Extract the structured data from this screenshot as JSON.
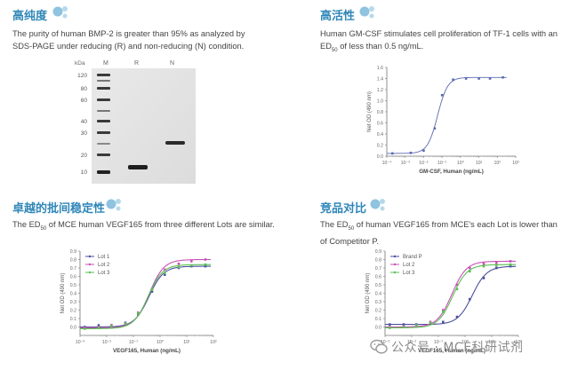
{
  "panels": {
    "purity": {
      "title": "高纯度",
      "desc_line1": "The purity of human BMP-2 is greater than  95% as analyzed by",
      "desc_line2": "SDS-PAGE under reducing (R) and non-reducing (N) condition.",
      "gel": {
        "kda_label": "kDa",
        "lane_labels": [
          "M",
          "R",
          "N"
        ],
        "marker_kda": [
          "120",
          "80",
          "60",
          "40",
          "30",
          "20",
          "10"
        ]
      }
    },
    "activity": {
      "title": "高活性",
      "desc_pre": "Human GM-CSF stimulates cell proliferation of TF-1 cells with an",
      "desc_ed": "ED",
      "desc_sub": "50",
      "desc_post": " of less than 0.5 ng/mL."
    },
    "consistency": {
      "title": "卓越的批间稳定性",
      "desc_pre": "The ED",
      "desc_sub": "50",
      "desc_post": " of MCE human VEGF165 from three different Lots are similar."
    },
    "comparison": {
      "title": "竞品对比",
      "desc_pre": "The ED",
      "desc_sub": "50",
      "desc_post": " of human VEGF165 from MCE's each Lot is lower than",
      "desc_line2": "of Competitor P."
    }
  },
  "chart_data": [
    {
      "type": "scatter",
      "id": "gmcsf",
      "xscale": "log",
      "xlabel": "GM-CSF, Human (ng/mL)",
      "ylabel": "Net OD (490 nm)",
      "xlim": [
        0.0001,
        1000
      ],
      "ylim": [
        0,
        1.6
      ],
      "x_ticks": [
        "10⁻⁴",
        "10⁻³",
        "10⁻²",
        "10⁻¹",
        "10⁰",
        "10¹",
        "10²",
        "10³"
      ],
      "y_ticks": [
        "0.0",
        "0.2",
        "0.4",
        "0.6",
        "0.8",
        "1.0",
        "1.2",
        "1.4",
        "1.6"
      ],
      "series": [
        {
          "color": "#5b6ab0",
          "x": [
            0.0002,
            0.002,
            0.01,
            0.04,
            0.1,
            0.4,
            2,
            10,
            40,
            200
          ],
          "y": [
            0.05,
            0.06,
            0.1,
            0.5,
            1.1,
            1.38,
            1.4,
            1.4,
            1.4,
            1.42
          ]
        }
      ]
    },
    {
      "type": "line",
      "id": "vegf_lots",
      "xscale": "log",
      "xlabel": "VEGF165, Human (ng/mL)",
      "ylabel": "Net OD (490 nm)",
      "xlim": [
        0.001,
        100
      ],
      "ylim": [
        -0.1,
        0.9
      ],
      "x_ticks": [
        "10⁻³",
        "10⁻²",
        "10⁻¹",
        "10⁰",
        "10¹",
        "10²"
      ],
      "y_ticks": [
        "0.0",
        "0.1",
        "0.2",
        "0.3",
        "0.4",
        "0.5",
        "0.6",
        "0.7",
        "0.8",
        "0.9"
      ],
      "legend": "top-left",
      "series": [
        {
          "name": "Lot 1",
          "color": "#4b4f9c",
          "x": [
            0.0015,
            0.005,
            0.015,
            0.05,
            0.15,
            0.5,
            1.5,
            5,
            15,
            50
          ],
          "y": [
            0.0,
            0.02,
            0.02,
            0.05,
            0.15,
            0.42,
            0.62,
            0.7,
            0.72,
            0.72
          ]
        },
        {
          "name": "Lot 2",
          "color": "#c94fb6",
          "x": [
            0.0015,
            0.005,
            0.015,
            0.05,
            0.15,
            0.5,
            1.5,
            5,
            15,
            50
          ],
          "y": [
            -0.01,
            0.0,
            0.02,
            0.04,
            0.17,
            0.45,
            0.68,
            0.75,
            0.78,
            0.8
          ]
        },
        {
          "name": "Lot 3",
          "color": "#5bbf55",
          "x": [
            0.0015,
            0.005,
            0.015,
            0.05,
            0.15,
            0.5,
            1.5,
            5,
            15,
            50
          ],
          "y": [
            -0.02,
            -0.01,
            0.01,
            0.04,
            0.16,
            0.44,
            0.64,
            0.71,
            0.73,
            0.74
          ]
        }
      ]
    },
    {
      "type": "line",
      "id": "vegf_compare",
      "xscale": "log",
      "xlabel": "VEGF165, Human (ng/mL)",
      "ylabel": "Net OD (490 nm)",
      "xlim": [
        0.001,
        100
      ],
      "ylim": [
        -0.1,
        0.9
      ],
      "x_ticks": [
        "10⁻³",
        "10⁻²",
        "10⁻¹",
        "10⁰",
        "10¹",
        "10²"
      ],
      "y_ticks": [
        "0.0",
        "0.1",
        "0.2",
        "0.3",
        "0.4",
        "0.5",
        "0.6",
        "0.7",
        "0.8",
        "0.9"
      ],
      "legend": "top-left",
      "series": [
        {
          "name": "Brand P",
          "color": "#4b4f9c",
          "x": [
            0.0015,
            0.005,
            0.015,
            0.05,
            0.15,
            0.5,
            1.5,
            5,
            15,
            50
          ],
          "y": [
            0.03,
            0.03,
            0.03,
            0.04,
            0.06,
            0.12,
            0.33,
            0.58,
            0.7,
            0.72
          ]
        },
        {
          "name": "Lot 2",
          "color": "#c94fb6",
          "x": [
            0.0015,
            0.005,
            0.015,
            0.05,
            0.15,
            0.5,
            1.5,
            5,
            15,
            50
          ],
          "y": [
            0.0,
            0.01,
            0.02,
            0.06,
            0.2,
            0.5,
            0.7,
            0.75,
            0.76,
            0.78
          ]
        },
        {
          "name": "Lot 3",
          "color": "#5bbf55",
          "x": [
            0.0015,
            0.005,
            0.015,
            0.05,
            0.15,
            0.5,
            1.5,
            5,
            15,
            50
          ],
          "y": [
            -0.01,
            0.0,
            0.02,
            0.05,
            0.18,
            0.45,
            0.66,
            0.72,
            0.73,
            0.74
          ]
        }
      ]
    }
  ],
  "watermark": {
    "text": "公众号 · MCE科研试剂"
  },
  "colors": {
    "title": "#2f86b8",
    "bubble": "#8fc3e0"
  }
}
